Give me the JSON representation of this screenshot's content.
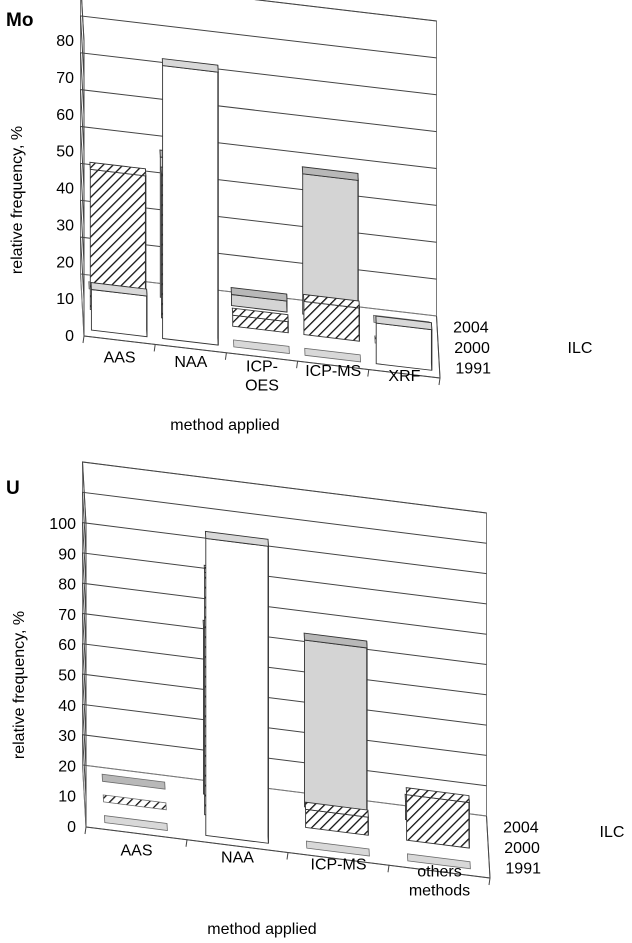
{
  "chart_data": [
    {
      "type": "bar",
      "panel_label": "Mo",
      "xlabel": "method applied",
      "ylabel": "relative frequency, %",
      "zlabel": "ILC",
      "ylim": [
        0,
        80
      ],
      "yticks": [
        "0",
        "10",
        "20",
        "30",
        "40",
        "50",
        "60",
        "70",
        "80"
      ],
      "categories": [
        "AAS",
        "NAA",
        "ICP-OES",
        "ICP-MS",
        "XRF"
      ],
      "category_labels": [
        [
          "AAS"
        ],
        [
          "NAA"
        ],
        [
          "ICP-",
          "OES"
        ],
        [
          "ICP-MS"
        ],
        [
          "XRF"
        ]
      ],
      "series": [
        {
          "name": "1991",
          "values": [
            11,
            74,
            0,
            0,
            11
          ]
        },
        {
          "name": "2000",
          "values": [
            38,
            39,
            3,
            9,
            0
          ]
        },
        {
          "name": "2004",
          "values": [
            0,
            38,
            3,
            38,
            0
          ]
        }
      ],
      "grid": true,
      "legend": "depth axis labels on the right",
      "colors": {
        "1991": "#ffffff",
        "2000": "hatched",
        "2004": "#cfcfcf"
      }
    },
    {
      "type": "bar",
      "panel_label": "U",
      "xlabel": "method applied",
      "ylabel": "relative frequency, %",
      "zlabel": "ILC",
      "ylim": [
        0,
        100
      ],
      "yticks": [
        "0",
        "10",
        "20",
        "30",
        "40",
        "50",
        "60",
        "70",
        "80",
        "90",
        "100"
      ],
      "categories": [
        "AAS",
        "NAA",
        "ICP-MS",
        "others methods"
      ],
      "category_labels": [
        [
          "AAS"
        ],
        [
          "NAA"
        ],
        [
          "ICP-MS"
        ],
        [
          "others",
          "methods"
        ]
      ],
      "series": [
        {
          "name": "1991",
          "values": [
            0,
            98,
            0,
            0
          ]
        },
        {
          "name": "2000",
          "values": [
            0,
            80,
            6,
            15
          ]
        },
        {
          "name": "2004",
          "values": [
            0,
            55,
            55,
            6
          ]
        }
      ],
      "grid": true,
      "legend": "depth axis labels on the right",
      "colors": {
        "1991": "#ffffff",
        "2000": "hatched",
        "2004": "#cfcfcf"
      }
    }
  ]
}
